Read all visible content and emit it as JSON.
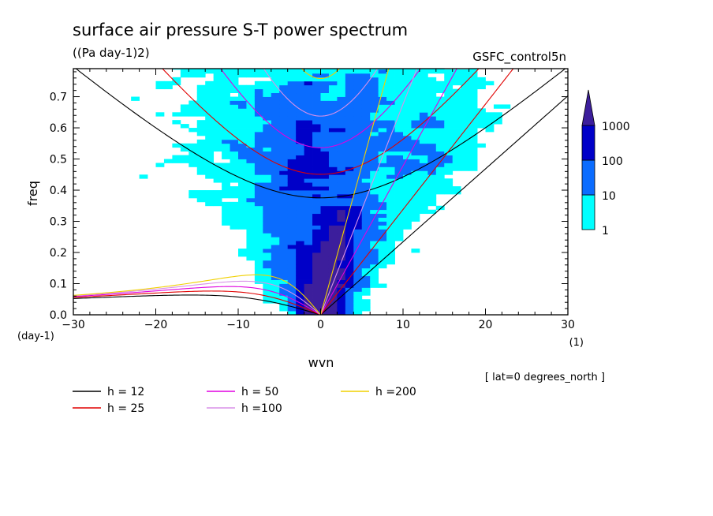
{
  "chart_data": {
    "type": "heatmap",
    "title": "surface air pressure S-T power spectrum",
    "units": "((Pa day-1)2)",
    "source_label": "GSFC_control5n",
    "xlabel": "wvn",
    "ylabel": "freq",
    "x_unit_label": "(1)",
    "y_unit_label": "(day-1)",
    "xlim": [
      -30,
      30
    ],
    "ylim": [
      0,
      0.79
    ],
    "x_ticks": [
      "-30",
      "-20",
      "-10",
      "0",
      "10",
      "20",
      "30"
    ],
    "y_ticks": [
      "0.0",
      "0.1",
      "0.2",
      "0.3",
      "0.4",
      "0.5",
      "0.6",
      "0.7"
    ],
    "region_note": "[ lat=0 degrees_north ]",
    "colorbar": {
      "levels": [
        "1",
        "10",
        "100",
        "1000"
      ],
      "colors": [
        "#00ffff",
        "#0a6cff",
        "#0000c8",
        "#3c1e9c"
      ]
    },
    "dispersion_curves": [
      {
        "label": "h = 12",
        "color": "#000000",
        "h": 12
      },
      {
        "label": "h = 25",
        "color": "#e00000",
        "h": 25
      },
      {
        "label": "h = 50",
        "color": "#e000e0",
        "h": 50
      },
      {
        "label": "h =100",
        "color": "#d890e8",
        "h": 100
      },
      {
        "label": "h =200",
        "color": "#f0d000",
        "h": 200
      }
    ]
  }
}
